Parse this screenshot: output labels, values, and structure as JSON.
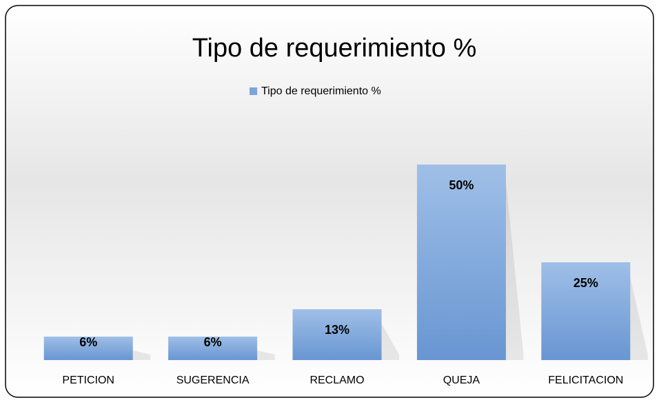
{
  "chart_data": {
    "type": "bar",
    "title": "Tipo de requerimiento %",
    "series": [
      {
        "name": "Tipo de requerimiento %",
        "color": "#7ba4d9",
        "values": [
          6,
          6,
          13,
          50,
          25
        ],
        "value_labels": [
          "6%",
          "6%",
          "13%",
          "50%",
          "25%"
        ]
      }
    ],
    "categories": [
      "PETICION",
      "SUGERENCIA",
      "RECLAMO",
      "QUEJA",
      "FELICITACION"
    ],
    "legend": "top"
  }
}
